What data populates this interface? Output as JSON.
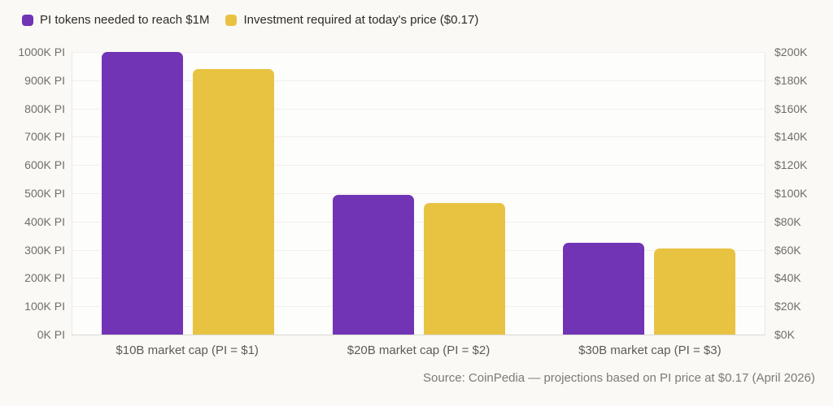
{
  "chart_data": {
    "type": "bar",
    "title": "",
    "categories": [
      "$10B market cap (PI = $1)",
      "$20B market cap (PI = $2)",
      "$30B market cap (PI = $3)"
    ],
    "series": [
      {
        "name": "PI tokens needed to reach $1M",
        "axis": "left",
        "unit": "K PI",
        "color": "#7134b5",
        "values": [
          1000,
          495,
          325
        ]
      },
      {
        "name": "Investment required at today's price ($0.17)",
        "axis": "right",
        "unit": "K USD",
        "color": "#e8c342",
        "values": [
          188,
          93,
          61
        ]
      }
    ],
    "left_axis": {
      "min": 0,
      "max": 1000,
      "tick_step": 100,
      "tick_labels": [
        "1000K PI",
        "900K PI",
        "800K PI",
        "700K PI",
        "600K PI",
        "500K PI",
        "400K PI",
        "300K PI",
        "200K PI",
        "100K PI",
        "0K PI"
      ]
    },
    "right_axis": {
      "min": 0,
      "max": 200,
      "tick_step": 20,
      "tick_labels": [
        "$200K",
        "$180K",
        "$160K",
        "$140K",
        "$120K",
        "$100K",
        "$80K",
        "$60K",
        "$40K",
        "$20K",
        "$0K"
      ]
    },
    "grid": true,
    "legend_position": "top-left"
  },
  "footer": {
    "source": "Source: CoinPedia — projections based on PI price at $0.17 (April 2026)"
  }
}
